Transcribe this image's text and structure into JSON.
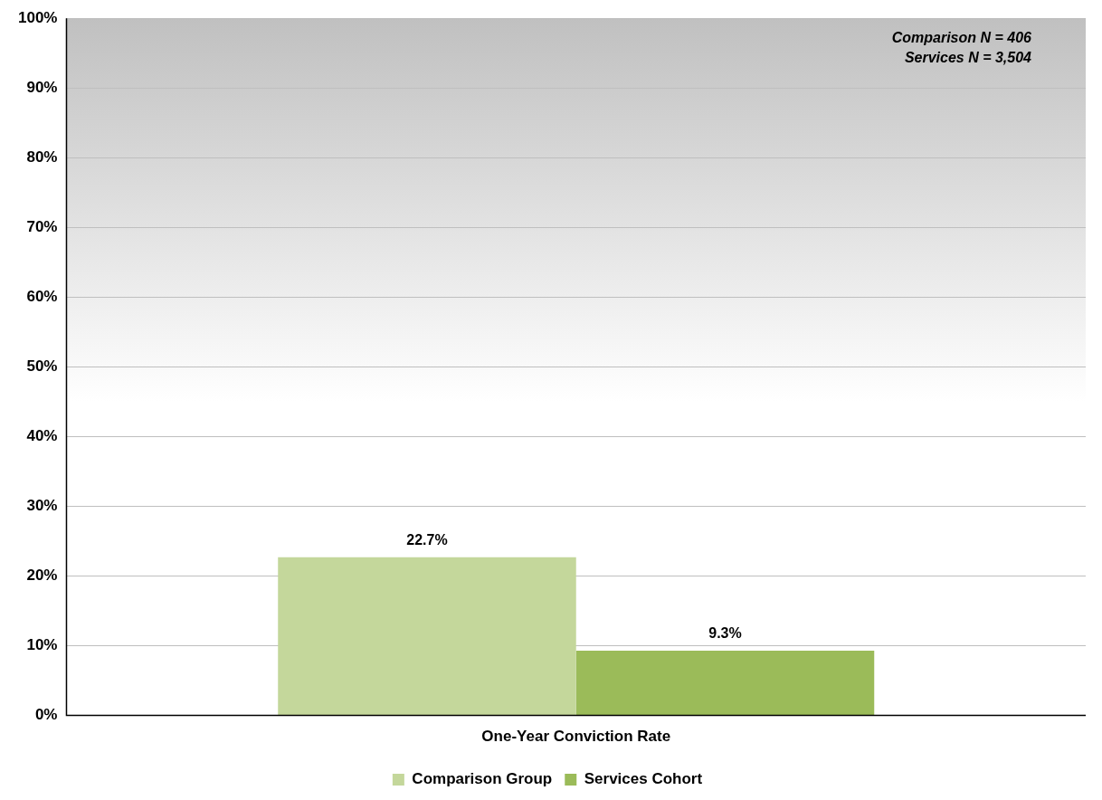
{
  "chart_data": {
    "type": "bar",
    "categories": [
      "One-Year Conviction Rate"
    ],
    "series": [
      {
        "name": "Comparison Group",
        "color": "#c4d79b",
        "values": [
          22.7
        ]
      },
      {
        "name": "Services Cohort",
        "color": "#9bbb59",
        "values": [
          9.3
        ]
      }
    ],
    "ylim": [
      0,
      100
    ],
    "yticks": [
      {
        "value": 0,
        "label": "0%"
      },
      {
        "value": 10,
        "label": "10%"
      },
      {
        "value": 20,
        "label": "20%"
      },
      {
        "value": 30,
        "label": "30%"
      },
      {
        "value": 40,
        "label": "40%"
      },
      {
        "value": 50,
        "label": "50%"
      },
      {
        "value": 60,
        "label": "60%"
      },
      {
        "value": 70,
        "label": "70%"
      },
      {
        "value": 80,
        "label": "80%"
      },
      {
        "value": 90,
        "label": "90%"
      },
      {
        "value": 100,
        "label": "100%"
      }
    ],
    "value_labels": [
      "22.7%",
      "9.3%"
    ],
    "grid": "y",
    "legend": "bottom",
    "annotations": [
      "Comparison N = 406",
      "Services N = 3,504"
    ]
  }
}
